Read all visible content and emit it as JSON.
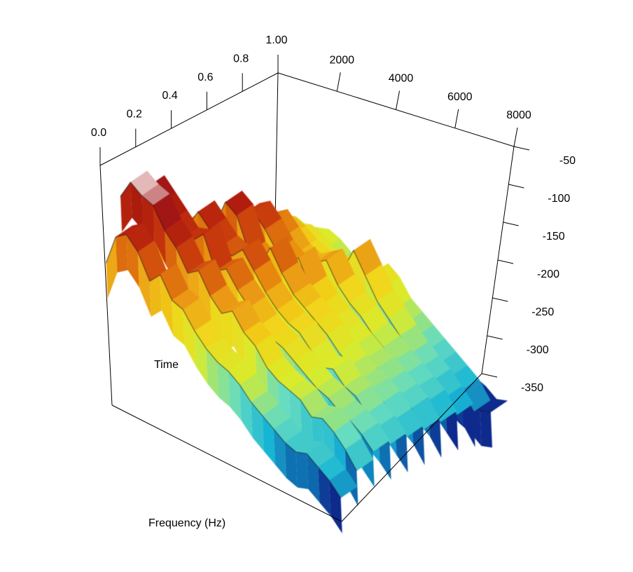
{
  "chart_data": {
    "type": "surface",
    "title": "",
    "xlabel": "Frequency (Hz)",
    "ylabel": "Time",
    "zlabel": "",
    "x_ticks": [
      "2000",
      "4000",
      "6000",
      "8000"
    ],
    "y_ticks": [
      "0.0",
      "0.2",
      "0.4",
      "0.6",
      "0.8",
      "1.00"
    ],
    "z_ticks": [
      "-50",
      "-100",
      "-150",
      "-200",
      "-250",
      "-300",
      "-350"
    ],
    "xlim": [
      0,
      8000
    ],
    "ylim": [
      0.0,
      1.0
    ],
    "zlim": [
      -350,
      -50
    ],
    "colormap": [
      "#0a2a8c",
      "#15b3d6",
      "#66dcc0",
      "#d8ec2c",
      "#f2d41a",
      "#e88a10",
      "#c43010",
      "#9e1010",
      "#ffffff"
    ],
    "time_slices": [
      {
        "t": 0.0,
        "db": [
          -170,
          -130,
          -120,
          -135,
          -165,
          -150,
          -175,
          -180,
          -200,
          -215,
          -225,
          -230,
          -240,
          -255,
          -265,
          -275,
          -285,
          -290,
          -285,
          -295,
          -305,
          -320
        ]
      },
      {
        "t": 0.1,
        "db": [
          -100,
          -75,
          -85,
          -90,
          -115,
          -130,
          -155,
          -145,
          -170,
          -185,
          -175,
          -195,
          -205,
          -225,
          -235,
          -240,
          -245,
          -260,
          -255,
          -265,
          -280,
          -300
        ]
      },
      {
        "t": 0.2,
        "db": [
          -145,
          -95,
          -110,
          -125,
          -140,
          -135,
          -120,
          -160,
          -150,
          -170,
          -185,
          -200,
          -210,
          -215,
          -225,
          -235,
          -245,
          -250,
          -260,
          -265,
          -275,
          -290
        ]
      },
      {
        "t": 0.3,
        "db": [
          -180,
          -150,
          -160,
          -145,
          -120,
          -135,
          -150,
          -155,
          -140,
          -160,
          -180,
          -195,
          -205,
          -210,
          -225,
          -240,
          -235,
          -250,
          -255,
          -270,
          -280,
          -295
        ]
      },
      {
        "t": 0.4,
        "db": [
          -190,
          -170,
          -175,
          -165,
          -150,
          -115,
          -125,
          -165,
          -175,
          -145,
          -170,
          -190,
          -200,
          -210,
          -220,
          -235,
          -245,
          -255,
          -260,
          -270,
          -285,
          -300
        ]
      },
      {
        "t": 0.5,
        "db": [
          -205,
          -190,
          -185,
          -175,
          -165,
          -145,
          -135,
          -150,
          -170,
          -180,
          -165,
          -195,
          -210,
          -220,
          -230,
          -240,
          -250,
          -255,
          -265,
          -275,
          -285,
          -305
        ]
      },
      {
        "t": 0.6,
        "db": [
          -215,
          -205,
          -200,
          -190,
          -180,
          -170,
          -160,
          -175,
          -190,
          -195,
          -185,
          -175,
          -200,
          -215,
          -225,
          -240,
          -250,
          -260,
          -270,
          -280,
          -290,
          -310
        ]
      },
      {
        "t": 0.7,
        "db": [
          -225,
          -215,
          -210,
          -205,
          -200,
          -190,
          -195,
          -205,
          -210,
          -215,
          -205,
          -200,
          -170,
          -195,
          -220,
          -235,
          -250,
          -265,
          -275,
          -285,
          -300,
          -315
        ]
      },
      {
        "t": 0.8,
        "db": [
          -240,
          -230,
          -225,
          -230,
          -220,
          -215,
          -220,
          -230,
          -235,
          -240,
          -235,
          -230,
          -215,
          -225,
          -245,
          -255,
          -265,
          -275,
          -285,
          -295,
          -305,
          -325
        ]
      },
      {
        "t": 0.9,
        "db": [
          -250,
          -245,
          -240,
          -245,
          -240,
          -235,
          -240,
          -250,
          -255,
          -260,
          -255,
          -265,
          -270,
          -280,
          -290,
          -300,
          -310,
          -320,
          -330,
          -335,
          -345,
          -340
        ]
      }
    ]
  }
}
